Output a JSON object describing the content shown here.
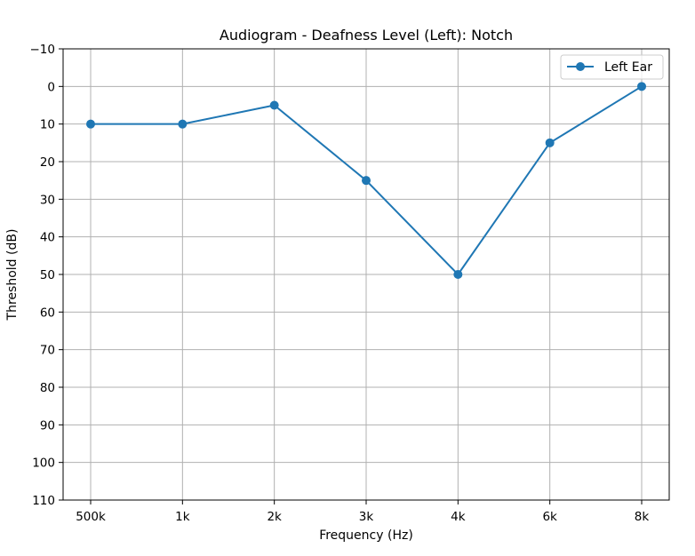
{
  "chart_data": {
    "type": "line",
    "title": "Audiogram - Deafness Level (Left): Notch",
    "xlabel": "Frequency (Hz)",
    "ylabel": "Threshold (dB)",
    "categories": [
      "500k",
      "1k",
      "2k",
      "3k",
      "4k",
      "6k",
      "8k"
    ],
    "ylim": [
      110,
      -10
    ],
    "yticks": [
      -10,
      0,
      10,
      20,
      30,
      40,
      50,
      60,
      70,
      80,
      90,
      100,
      110
    ],
    "ytick_labels": [
      "−10",
      "0",
      "10",
      "20",
      "30",
      "40",
      "50",
      "60",
      "70",
      "80",
      "90",
      "100",
      "110"
    ],
    "y_inverted": true,
    "grid": true,
    "legend_position": "top-right",
    "series": [
      {
        "name": "Left Ear",
        "color": "#1f77b4",
        "marker": "circle",
        "values": [
          10,
          10,
          5,
          25,
          50,
          15,
          0
        ]
      }
    ]
  }
}
